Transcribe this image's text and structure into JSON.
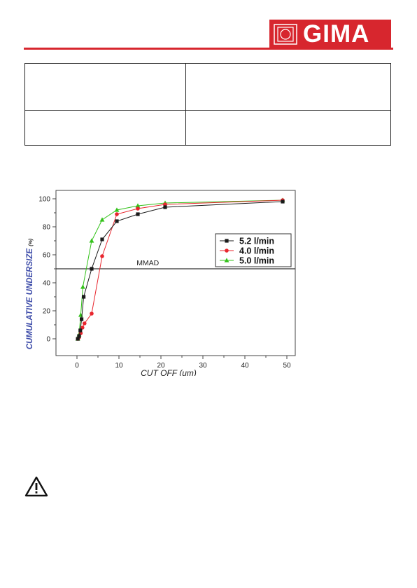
{
  "header": {
    "brand": "GIMA",
    "brand_color": "#d7262e",
    "logo_icon": "gima-shield-logo"
  },
  "info_table": {
    "rows": [
      [
        "",
        ""
      ],
      [
        "",
        ""
      ]
    ]
  },
  "warning_icon": "warning-triangle-icon",
  "chart_data": {
    "type": "line",
    "xlabel": "CUT OFF (um)",
    "ylabel": "CUMULATIVE UNDERSIZE",
    "ylabel_unit": "(%)",
    "xlim": [
      -5,
      52
    ],
    "ylim": [
      -12,
      106
    ],
    "x_ticks": [
      0,
      10,
      20,
      30,
      40,
      50
    ],
    "y_ticks": [
      0,
      20,
      40,
      60,
      80,
      100
    ],
    "grid": false,
    "legend_position": "right",
    "reference_line": {
      "y": 50,
      "label": "MMAD"
    },
    "series": [
      {
        "name": "5.2 l/min",
        "color": "#1a1a1a",
        "marker": "square",
        "x": [
          0.2,
          0.5,
          0.8,
          1.1,
          1.6,
          3.5,
          6.0,
          9.5,
          14.5,
          21,
          49
        ],
        "y": [
          0,
          2,
          6,
          14,
          30,
          50,
          71,
          84,
          89,
          94,
          98
        ]
      },
      {
        "name": "4.0 l/min",
        "color": "#e8262e",
        "marker": "circle",
        "x": [
          0.2,
          0.5,
          0.9,
          1.3,
          1.8,
          3.5,
          6.0,
          9.5,
          14.5,
          21,
          49
        ],
        "y": [
          0,
          1,
          4,
          8,
          11,
          18,
          59,
          89,
          93,
          96,
          99
        ]
      },
      {
        "name": "5.0 l/min",
        "color": "#33c21a",
        "marker": "triangle",
        "x": [
          0.2,
          0.5,
          0.9,
          1.4,
          3.5,
          6.0,
          9.5,
          14.5,
          21,
          49
        ],
        "y": [
          0,
          3,
          17,
          37,
          70,
          85,
          92,
          95,
          97,
          99
        ]
      }
    ]
  }
}
